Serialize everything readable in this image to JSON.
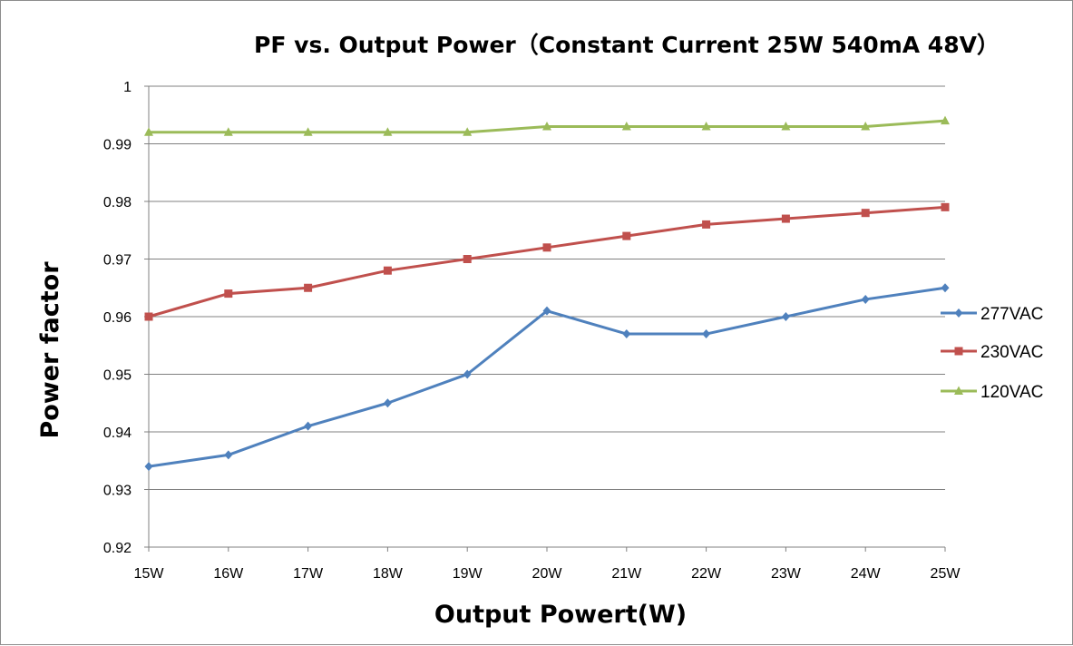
{
  "chart_data": {
    "type": "line",
    "title": "PF vs. Output Power（Constant Current 25W 540mA 48V）",
    "xlabel": "Output Powert(W)",
    "ylabel": "Power factor",
    "categories": [
      "15W",
      "16W",
      "17W",
      "18W",
      "19W",
      "20W",
      "21W",
      "22W",
      "23W",
      "24W",
      "25W"
    ],
    "ylim": [
      0.92,
      1.0
    ],
    "yticks": [
      0.92,
      0.93,
      0.94,
      0.95,
      0.96,
      0.97,
      0.98,
      0.99,
      1
    ],
    "ytick_labels": [
      "0.92",
      "0.93",
      "0.94",
      "0.95",
      "0.96",
      "0.97",
      "0.98",
      "0.99",
      "1"
    ],
    "grid": "horizontal",
    "legend_position": "right",
    "series": [
      {
        "name": "277VAC",
        "color": "#4f81bd",
        "marker": "diamond",
        "values": [
          0.934,
          0.936,
          0.941,
          0.945,
          0.95,
          0.961,
          0.957,
          0.957,
          0.96,
          0.963,
          0.965
        ]
      },
      {
        "name": "230VAC",
        "color": "#c0504d",
        "marker": "square",
        "values": [
          0.96,
          0.964,
          0.965,
          0.968,
          0.97,
          0.972,
          0.974,
          0.976,
          0.977,
          0.978,
          0.979
        ]
      },
      {
        "name": "120VAC",
        "color": "#9bbb59",
        "marker": "triangle",
        "values": [
          0.992,
          0.992,
          0.992,
          0.992,
          0.992,
          0.993,
          0.993,
          0.993,
          0.993,
          0.993,
          0.994
        ]
      }
    ]
  }
}
